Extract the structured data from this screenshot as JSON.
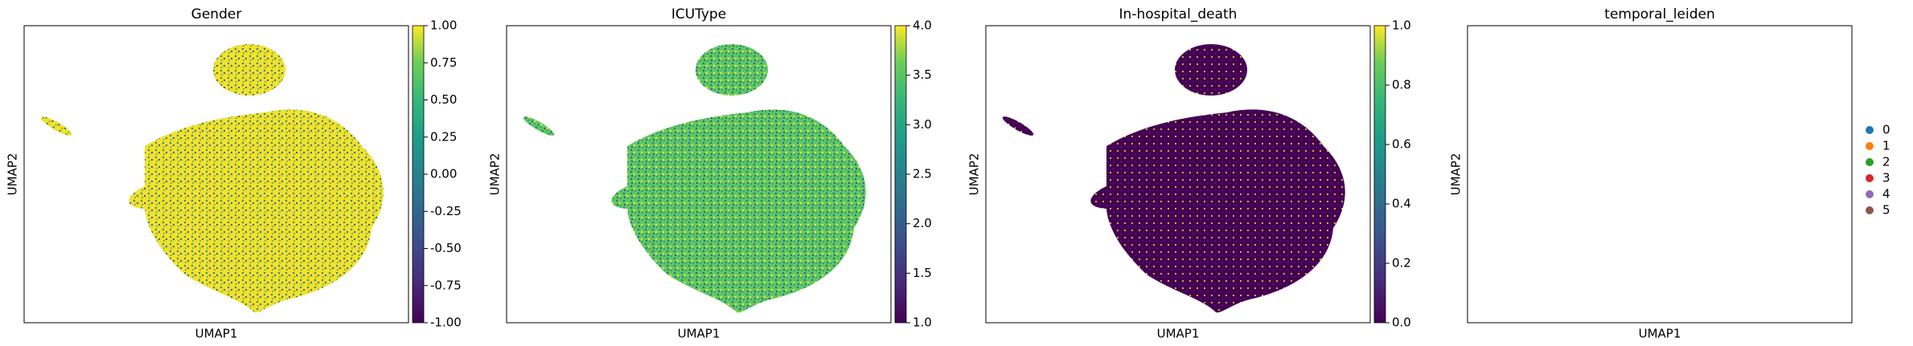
{
  "chart_data": [
    {
      "type": "scatter",
      "title": "Gender",
      "xlabel": "UMAP1",
      "ylabel": "UMAP2",
      "colormap": "viridis",
      "clim": [
        -1,
        1
      ],
      "cticks": [
        {
          "value": -1,
          "label": "-1.00"
        },
        {
          "value": -0.75,
          "label": "-0.75"
        },
        {
          "value": -0.5,
          "label": "-0.50"
        },
        {
          "value": -0.25,
          "label": "-0.25"
        },
        {
          "value": 0,
          "label": "0.00"
        },
        {
          "value": 0.25,
          "label": "0.25"
        },
        {
          "value": 0.5,
          "label": "0.50"
        },
        {
          "value": 0.75,
          "label": "0.75"
        },
        {
          "value": 1,
          "label": "1.00"
        }
      ]
    },
    {
      "type": "scatter",
      "title": "ICUType",
      "xlabel": "UMAP1",
      "ylabel": "UMAP2",
      "colormap": "viridis",
      "clim": [
        1,
        4
      ],
      "cticks": [
        {
          "value": 1,
          "label": "1.0"
        },
        {
          "value": 1.5,
          "label": "1.5"
        },
        {
          "value": 2,
          "label": "2.0"
        },
        {
          "value": 2.5,
          "label": "2.5"
        },
        {
          "value": 3,
          "label": "3.0"
        },
        {
          "value": 3.5,
          "label": "3.5"
        },
        {
          "value": 4,
          "label": "4.0"
        }
      ]
    },
    {
      "type": "scatter",
      "title": "In-hospital_death",
      "xlabel": "UMAP1",
      "ylabel": "UMAP2",
      "colormap": "viridis",
      "clim": [
        0,
        1
      ],
      "cticks": [
        {
          "value": 0,
          "label": "0.0"
        },
        {
          "value": 0.2,
          "label": "0.2"
        },
        {
          "value": 0.4,
          "label": "0.4"
        },
        {
          "value": 0.6,
          "label": "0.6"
        },
        {
          "value": 0.8,
          "label": "0.8"
        },
        {
          "value": 1,
          "label": "1.0"
        }
      ]
    },
    {
      "type": "scatter",
      "title": "temporal_leiden",
      "xlabel": "UMAP1",
      "ylabel": "UMAP2",
      "categories": [
        "0",
        "1",
        "2",
        "3",
        "4",
        "5"
      ],
      "colors": [
        "#1f77b4",
        "#ff7f0e",
        "#2ca02c",
        "#d62728",
        "#9467bd",
        "#8c564b"
      ]
    }
  ]
}
